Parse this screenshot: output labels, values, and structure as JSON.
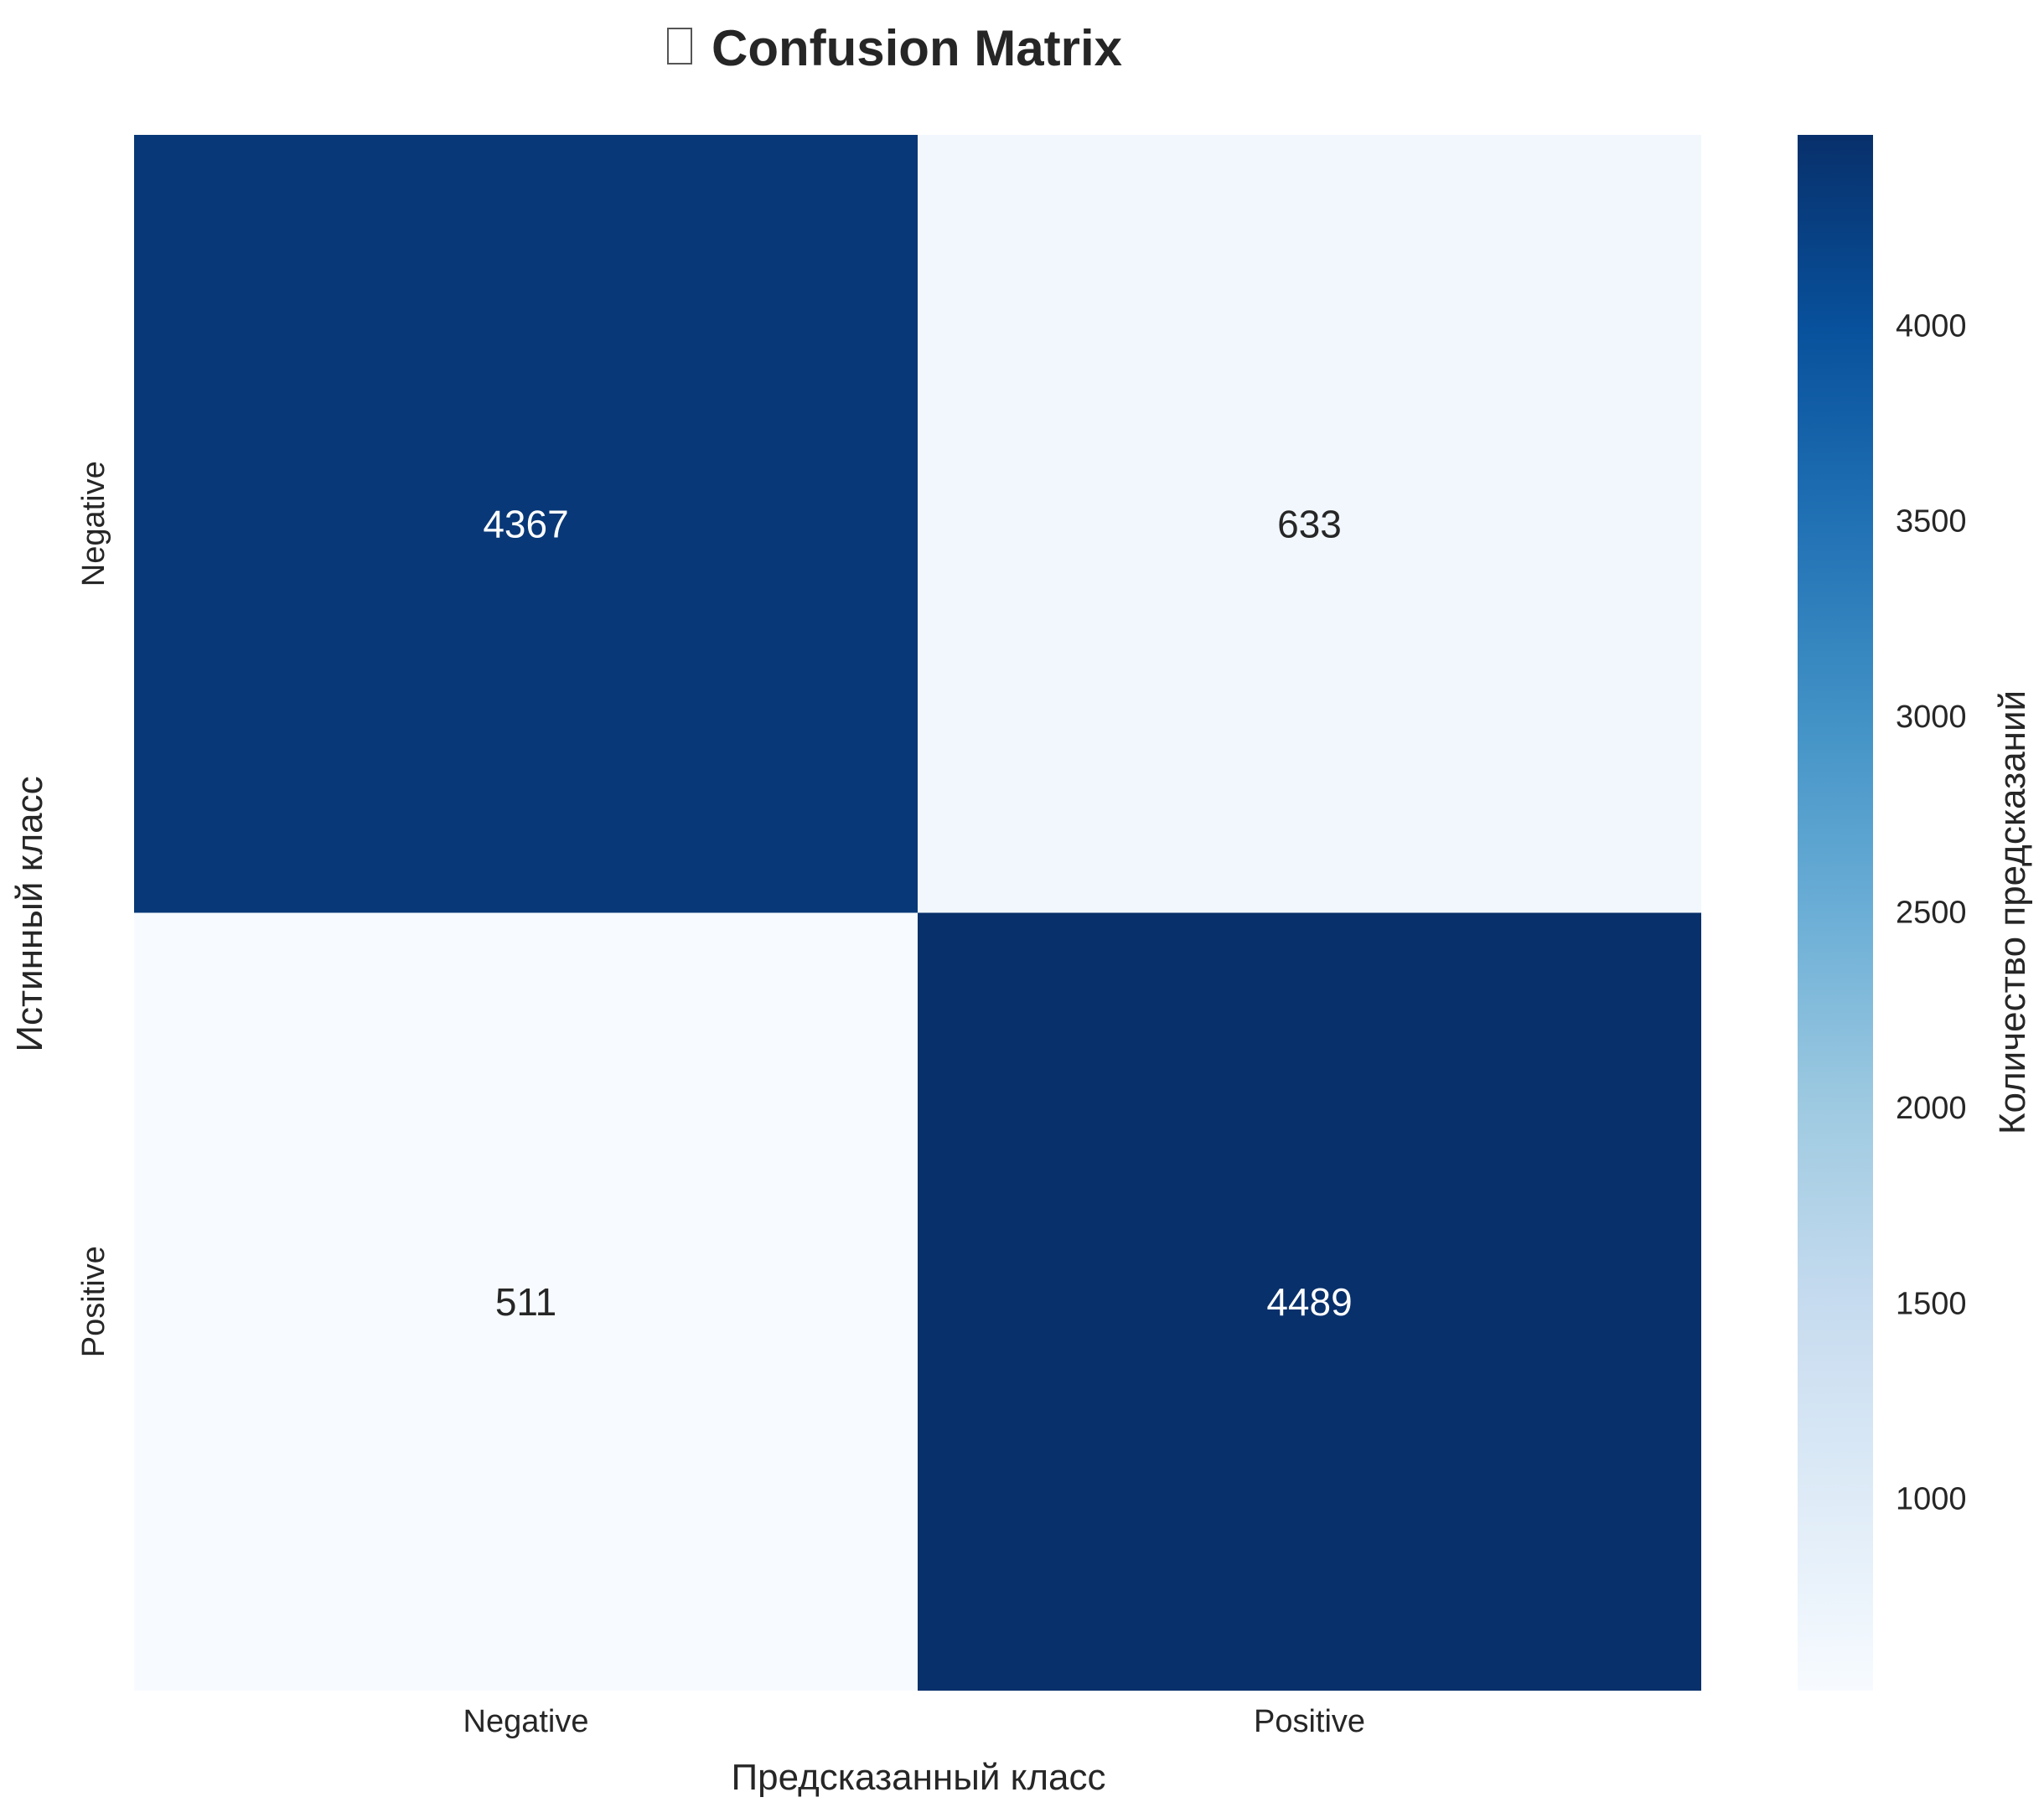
{
  "chart_data": {
    "type": "heatmap",
    "title": "Confusion Matrix",
    "title_icon": "missing-glyph-box",
    "xlabel": "Предсказанный класс",
    "ylabel": "Истинный класс",
    "x_categories": [
      "Negative",
      "Positive"
    ],
    "y_categories": [
      "Negative",
      "Positive"
    ],
    "values": [
      [
        4367,
        633
      ],
      [
        511,
        4489
      ]
    ],
    "colormap": "Blues",
    "colorbar": {
      "label": "Количество предсказаний",
      "range": [
        511,
        4489
      ],
      "ticks": [
        "1000",
        "1500",
        "2000",
        "2500",
        "3000",
        "3500",
        "4000"
      ],
      "colors": [
        "#f7fbff",
        "#deebf7",
        "#c6dbef",
        "#9ecae1",
        "#6baed6",
        "#4292c6",
        "#2171b5",
        "#08519c",
        "#08306b"
      ]
    },
    "grid": false
  }
}
